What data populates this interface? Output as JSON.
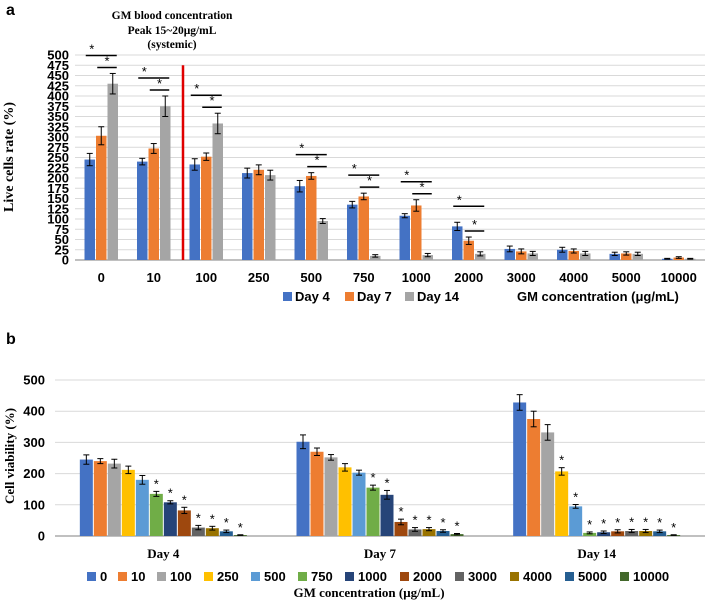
{
  "chart_data": [
    {
      "panel_label": "a",
      "type": "bar",
      "annotation_lines": [
        "GM blood concentration",
        "Peak 15~20μg/mL",
        "(systemic)"
      ],
      "ylabel": "Live cells rate (%)",
      "xlabel": "GM concentration (μg/mL)",
      "ylim": [
        0,
        500
      ],
      "yticks": [
        0,
        25,
        50,
        75,
        100,
        125,
        150,
        175,
        200,
        225,
        250,
        275,
        300,
        325,
        350,
        375,
        400,
        425,
        450,
        475,
        500
      ],
      "categories": [
        "0",
        "10",
        "100",
        "250",
        "500",
        "750",
        "1000",
        "2000",
        "3000",
        "4000",
        "5000",
        "10000"
      ],
      "series": [
        {
          "name": "Day 4",
          "color": "#4472c4",
          "values": [
            245,
            240,
            233,
            212,
            180,
            135,
            108,
            82,
            27,
            25,
            15,
            3
          ],
          "errors": [
            15,
            8,
            14,
            12,
            14,
            8,
            5,
            10,
            7,
            6,
            4,
            1
          ]
        },
        {
          "name": "Day 7",
          "color": "#ed7d31",
          "values": [
            303,
            272,
            252,
            220,
            205,
            155,
            133,
            47,
            21,
            22,
            16,
            6
          ],
          "errors": [
            22,
            12,
            9,
            12,
            8,
            8,
            14,
            9,
            6,
            5,
            4,
            2
          ]
        },
        {
          "name": "Day 14",
          "color": "#a5a5a5",
          "values": [
            430,
            375,
            333,
            207,
            95,
            10,
            12,
            15,
            16,
            16,
            15,
            3
          ],
          "errors": [
            25,
            25,
            25,
            12,
            6,
            3,
            4,
            5,
            5,
            5,
            4,
            1
          ]
        }
      ],
      "significance_marker": "*",
      "reference_line_color": "#e00000"
    },
    {
      "panel_label": "b",
      "type": "bar",
      "ylabel": "Cell viability (%)",
      "xlabel": "GM concentration (μg/mL)",
      "ylim": [
        0,
        500
      ],
      "yticks": [
        0,
        100,
        200,
        300,
        400,
        500
      ],
      "categories": [
        "Day 4",
        "Day 7",
        "Day 14"
      ],
      "series": [
        {
          "name": "0",
          "color": "#4472c4",
          "values": [
            245,
            302,
            428
          ],
          "errors": [
            15,
            22,
            25
          ]
        },
        {
          "name": "10",
          "color": "#ed7d31",
          "values": [
            240,
            270,
            375
          ],
          "errors": [
            8,
            12,
            25
          ]
        },
        {
          "name": "100",
          "color": "#a5a5a5",
          "values": [
            232,
            252,
            332
          ],
          "errors": [
            14,
            9,
            25
          ]
        },
        {
          "name": "250",
          "color": "#ffc000",
          "values": [
            212,
            220,
            207
          ],
          "errors": [
            12,
            12,
            12
          ]
        },
        {
          "name": "500",
          "color": "#5b9bd5",
          "values": [
            180,
            203,
            95
          ],
          "errors": [
            14,
            8,
            6
          ]
        },
        {
          "name": "750",
          "color": "#70ad47",
          "values": [
            135,
            155,
            10
          ],
          "errors": [
            8,
            8,
            3
          ]
        },
        {
          "name": "1000",
          "color": "#264478",
          "values": [
            108,
            132,
            12
          ],
          "errors": [
            5,
            14,
            4
          ]
        },
        {
          "name": "2000",
          "color": "#9e480e",
          "values": [
            82,
            45,
            15
          ],
          "errors": [
            10,
            9,
            5
          ]
        },
        {
          "name": "3000",
          "color": "#636363",
          "values": [
            27,
            21,
            16
          ],
          "errors": [
            7,
            6,
            5
          ]
        },
        {
          "name": "4000",
          "color": "#997300",
          "values": [
            25,
            22,
            16
          ],
          "errors": [
            6,
            5,
            5
          ]
        },
        {
          "name": "5000",
          "color": "#255e91",
          "values": [
            15,
            16,
            15
          ],
          "errors": [
            4,
            4,
            4
          ]
        },
        {
          "name": "10000",
          "color": "#43682b",
          "values": [
            3,
            6,
            3
          ],
          "errors": [
            1,
            2,
            1
          ]
        }
      ],
      "significance_marker": "*"
    }
  ]
}
